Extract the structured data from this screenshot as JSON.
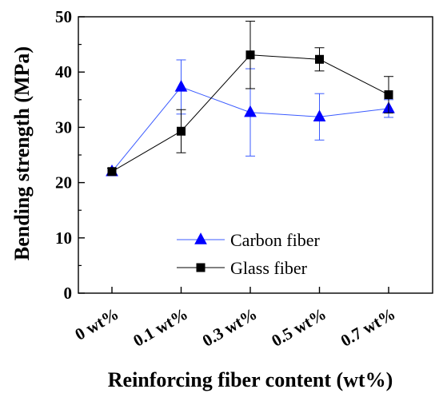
{
  "chart_data": {
    "type": "line",
    "title": "",
    "xlabel": "Reinforcing fiber content (wt%)",
    "ylabel": "Bending strength (MPa)",
    "categories": [
      "0 wt%",
      "0.1 wt%",
      "0.3 wt%",
      "0.5 wt%",
      "0.7 wt%"
    ],
    "ylim": [
      0,
      50
    ],
    "yticks": [
      0,
      10,
      20,
      30,
      40,
      50
    ],
    "ytick_labels": [
      "0",
      "10",
      "20",
      "30",
      "40",
      "50"
    ],
    "grid": false,
    "legend_position": "lower-center",
    "series": [
      {
        "name": "Carbon fiber",
        "marker": "triangle",
        "color": "#0000ff",
        "line_color": "#3b5bff",
        "values": [
          22.0,
          37.3,
          32.7,
          31.9,
          33.4
        ],
        "error": [
          0.6,
          4.9,
          7.9,
          4.2,
          1.6
        ]
      },
      {
        "name": "Glass fiber",
        "marker": "square",
        "color": "#000000",
        "line_color": "#000000",
        "values": [
          22.0,
          29.3,
          43.1,
          42.3,
          35.9
        ],
        "error": [
          0.6,
          3.9,
          6.1,
          2.1,
          3.3
        ]
      }
    ]
  }
}
